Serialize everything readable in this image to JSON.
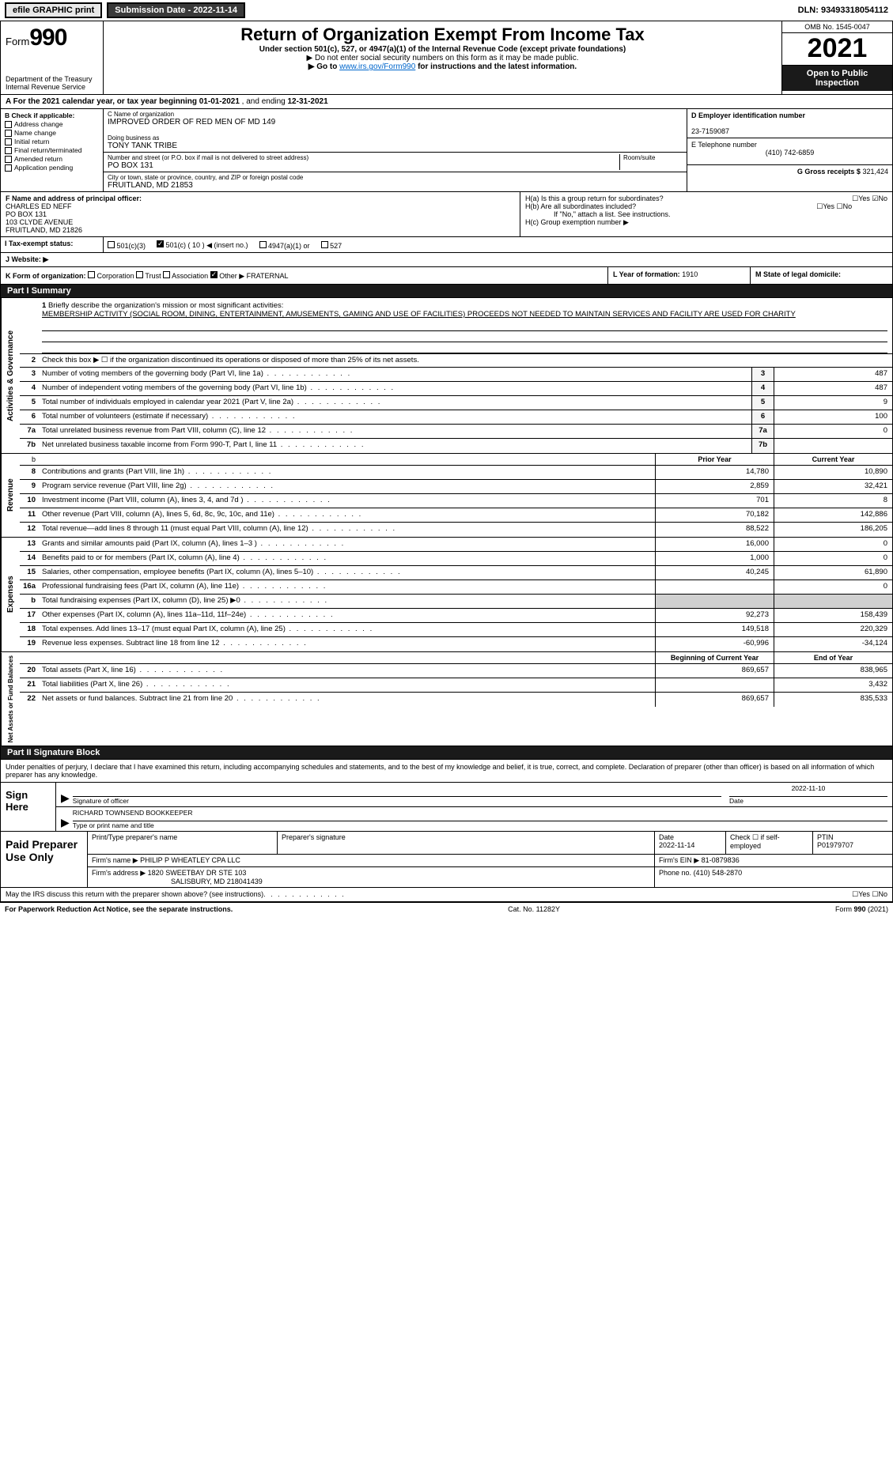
{
  "top": {
    "efile_label": "efile GRAPHIC print",
    "submission_btn": "Submission Date - 2022-11-14",
    "dln": "DLN: 93493318054112"
  },
  "header": {
    "form_word": "Form",
    "form_num": "990",
    "dept": "Department of the Treasury",
    "irs": "Internal Revenue Service",
    "title": "Return of Organization Exempt From Income Tax",
    "sub1": "Under section 501(c), 527, or 4947(a)(1) of the Internal Revenue Code (except private foundations)",
    "sub2": "▶ Do not enter social security numbers on this form as it may be made public.",
    "sub3_pre": "▶ Go to ",
    "sub3_link": "www.irs.gov/Form990",
    "sub3_post": " for instructions and the latest information.",
    "omb": "OMB No. 1545-0047",
    "year": "2021",
    "open": "Open to Public Inspection"
  },
  "row_a": {
    "label": "A For the 2021 calendar year, or tax year beginning ",
    "begin": "01-01-2021",
    "mid": "   , and ending ",
    "end": "12-31-2021"
  },
  "b": {
    "hdr": "B Check if applicable:",
    "addr": "Address change",
    "name": "Name change",
    "init": "Initial return",
    "final": "Final return/terminated",
    "amend": "Amended return",
    "app": "Application pending"
  },
  "c": {
    "name_lbl": "C Name of organization",
    "name": "IMPROVED ORDER OF RED MEN OF MD 149",
    "dba_lbl": "Doing business as",
    "dba": "TONY TANK TRIBE",
    "addr_lbl": "Number and street (or P.O. box if mail is not delivered to street address)",
    "room_lbl": "Room/suite",
    "addr": "PO BOX 131",
    "city_lbl": "City or town, state or province, country, and ZIP or foreign postal code",
    "city": "FRUITLAND, MD  21853"
  },
  "d": {
    "ein_lbl": "D Employer identification number",
    "ein": "23-7159087",
    "tel_lbl": "E Telephone number",
    "tel": "(410) 742-6859",
    "gross_lbl": "G Gross receipts $",
    "gross": "321,424"
  },
  "f": {
    "lbl": "F  Name and address of principal officer:",
    "name": "CHARLES ED NEFF",
    "l1": "PO BOX 131",
    "l2": "103 CLYDE AVENUE",
    "l3": "FRUITLAND, MD  21826"
  },
  "h": {
    "a_lbl": "H(a)  Is this a group return for subordinates?",
    "b_lbl": "H(b)  Are all subordinates included?",
    "b_note": "If \"No,\" attach a list. See instructions.",
    "c_lbl": "H(c)  Group exemption number ▶",
    "yes": "Yes",
    "no": "No"
  },
  "i": {
    "lbl": "I   Tax-exempt status:",
    "o1": "501(c)(3)",
    "o2": "501(c) ( 10 ) ◀ (insert no.)",
    "o3": "4947(a)(1) or",
    "o4": "527"
  },
  "j": {
    "lbl": "J  Website: ▶"
  },
  "k": {
    "lbl": "K Form of organization:",
    "corp": "Corporation",
    "trust": "Trust",
    "assoc": "Association",
    "other": "Other ▶",
    "other_val": "FRATERNAL",
    "l_lbl": "L Year of formation:",
    "l_val": "1910",
    "m_lbl": "M State of legal domicile:"
  },
  "part1": {
    "hdr": "Part I      Summary",
    "l1_lbl": "Briefly describe the organization's mission or most significant activities:",
    "l1_txt": "MEMBERSHIP ACTIVITY (SOCIAL ROOM, DINING, ENTERTAINMENT, AMUSEMENTS, GAMING AND USE OF FACILITIES) PROCEEDS NOT NEEDED TO MAINTAIN SERVICES AND FACILITY ARE USED FOR CHARITY",
    "l2": "Check this box ▶ ☐  if the organization discontinued its operations or disposed of more than 25% of its net assets.",
    "lines_gov": [
      {
        "n": "3",
        "t": "Number of voting members of the governing body (Part VI, line 1a)",
        "v": "487"
      },
      {
        "n": "4",
        "t": "Number of independent voting members of the governing body (Part VI, line 1b)",
        "v": "487"
      },
      {
        "n": "5",
        "t": "Total number of individuals employed in calendar year 2021 (Part V, line 2a)",
        "v": "9"
      },
      {
        "n": "6",
        "t": "Total number of volunteers (estimate if necessary)",
        "v": "100"
      },
      {
        "n": "7a",
        "t": "Total unrelated business revenue from Part VIII, column (C), line 12",
        "v": "0"
      },
      {
        "n": "7b",
        "t": "Net unrelated business taxable income from Form 990-T, Part I, line 11",
        "v": ""
      }
    ],
    "col_prior": "Prior Year",
    "col_curr": "Current Year",
    "revenue": [
      {
        "n": "8",
        "t": "Contributions and grants (Part VIII, line 1h)",
        "p": "14,780",
        "c": "10,890"
      },
      {
        "n": "9",
        "t": "Program service revenue (Part VIII, line 2g)",
        "p": "2,859",
        "c": "32,421"
      },
      {
        "n": "10",
        "t": "Investment income (Part VIII, column (A), lines 3, 4, and 7d )",
        "p": "701",
        "c": "8"
      },
      {
        "n": "11",
        "t": "Other revenue (Part VIII, column (A), lines 5, 6d, 8c, 9c, 10c, and 11e)",
        "p": "70,182",
        "c": "142,886"
      },
      {
        "n": "12",
        "t": "Total revenue—add lines 8 through 11 (must equal Part VIII, column (A), line 12)",
        "p": "88,522",
        "c": "186,205"
      }
    ],
    "expenses": [
      {
        "n": "13",
        "t": "Grants and similar amounts paid (Part IX, column (A), lines 1–3 )",
        "p": "16,000",
        "c": "0"
      },
      {
        "n": "14",
        "t": "Benefits paid to or for members (Part IX, column (A), line 4)",
        "p": "1,000",
        "c": "0"
      },
      {
        "n": "15",
        "t": "Salaries, other compensation, employee benefits (Part IX, column (A), lines 5–10)",
        "p": "40,245",
        "c": "61,890"
      },
      {
        "n": "16a",
        "t": "Professional fundraising fees (Part IX, column (A), line 11e)",
        "p": "",
        "c": "0"
      },
      {
        "n": "b",
        "t": "Total fundraising expenses (Part IX, column (D), line 25) ▶0",
        "p": "shade",
        "c": "shade"
      },
      {
        "n": "17",
        "t": "Other expenses (Part IX, column (A), lines 11a–11d, 11f–24e)",
        "p": "92,273",
        "c": "158,439"
      },
      {
        "n": "18",
        "t": "Total expenses. Add lines 13–17 (must equal Part IX, column (A), line 25)",
        "p": "149,518",
        "c": "220,329"
      },
      {
        "n": "19",
        "t": "Revenue less expenses. Subtract line 18 from line 12",
        "p": "-60,996",
        "c": "-34,124"
      }
    ],
    "col_begin": "Beginning of Current Year",
    "col_end": "End of Year",
    "net": [
      {
        "n": "20",
        "t": "Total assets (Part X, line 16)",
        "p": "869,657",
        "c": "838,965"
      },
      {
        "n": "21",
        "t": "Total liabilities (Part X, line 26)",
        "p": "",
        "c": "3,432"
      },
      {
        "n": "22",
        "t": "Net assets or fund balances. Subtract line 21 from line 20",
        "p": "869,657",
        "c": "835,533"
      }
    ]
  },
  "part2": {
    "hdr": "Part II     Signature Block",
    "intro": "Under penalties of perjury, I declare that I have examined this return, including accompanying schedules and statements, and to the best of my knowledge and belief, it is true, correct, and complete. Declaration of preparer (other than officer) is based on all information of which preparer has any knowledge.",
    "sign_here": "Sign Here",
    "sig_officer": "Signature of officer",
    "date_lbl": "Date",
    "date_val": "2022-11-10",
    "name_title": "RICHARD TOWNSEND BOOKKEEPER",
    "type_lbl": "Type or print name and title",
    "paid": "Paid Preparer Use Only",
    "prep_name_lbl": "Print/Type preparer's name",
    "prep_sig_lbl": "Preparer's signature",
    "prep_date_lbl": "Date",
    "prep_date": "2022-11-14",
    "check_if": "Check ☐ if self-employed",
    "ptin_lbl": "PTIN",
    "ptin": "P01979707",
    "firm_name_lbl": "Firm's name    ▶",
    "firm_name": "PHILIP P WHEATLEY CPA LLC",
    "firm_ein_lbl": "Firm's EIN ▶",
    "firm_ein": "81-0879836",
    "firm_addr_lbl": "Firm's address ▶",
    "firm_addr1": "1820 SWEETBAY DR STE 103",
    "firm_addr2": "SALISBURY, MD  218041439",
    "phone_lbl": "Phone no.",
    "phone": "(410) 548-2870",
    "discuss": "May the IRS discuss this return with the preparer shown above? (see instructions)",
    "paperwork": "For Paperwork Reduction Act Notice, see the separate instructions.",
    "cat": "Cat. No. 11282Y",
    "form_foot": "Form 990 (2021)"
  },
  "vert": {
    "gov": "Activities & Governance",
    "rev": "Revenue",
    "exp": "Expenses",
    "net": "Net Assets or Fund Balances"
  }
}
